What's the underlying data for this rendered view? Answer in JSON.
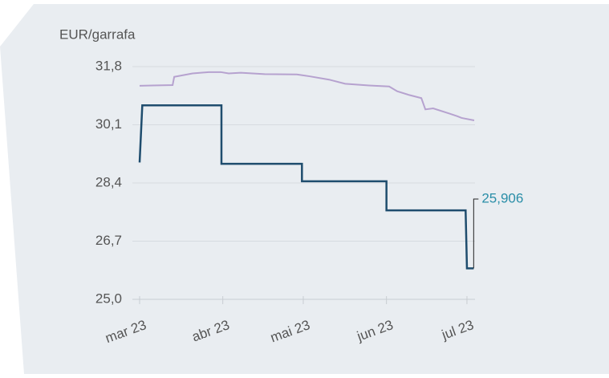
{
  "chart_data": {
    "type": "line",
    "ylabel": "EUR/garrafa",
    "ylim": [
      25.0,
      31.8
    ],
    "yticks": [
      {
        "value": 25.0,
        "label": "25,0"
      },
      {
        "value": 26.7,
        "label": "26,7"
      },
      {
        "value": 28.4,
        "label": "28,4"
      },
      {
        "value": 30.1,
        "label": "30,1"
      },
      {
        "value": 31.8,
        "label": "31,8"
      }
    ],
    "xlim": [
      0,
      125
    ],
    "xticks": [
      {
        "value": 0,
        "label": "mar 23"
      },
      {
        "value": 31,
        "label": "abr 23"
      },
      {
        "value": 61,
        "label": "mai 23"
      },
      {
        "value": 92,
        "label": "jun 23"
      },
      {
        "value": 122,
        "label": "jul 23"
      }
    ],
    "grid": true,
    "series": [
      {
        "color": "#1f4d6e",
        "x": [
          0,
          1,
          30.5,
          30.5,
          60.5,
          60.5,
          92,
          92,
          121.5,
          122,
          124.5
        ],
        "values": [
          29.0,
          30.67,
          30.67,
          28.96,
          28.96,
          28.45,
          28.45,
          27.6,
          27.6,
          25.906,
          25.906
        ]
      },
      {
        "color": "#b6a2cf",
        "x": [
          0,
          4.8,
          12.3,
          12.9,
          19.7,
          25.7,
          30.2,
          33.2,
          37.7,
          46.6,
          58.6,
          63.1,
          70.6,
          76.6,
          85.5,
          93,
          96,
          100.5,
          105,
          106.5,
          109.4,
          115.4,
          118.4,
          120,
          124.7
        ],
        "values": [
          31.24,
          31.25,
          31.26,
          31.5,
          31.6,
          31.64,
          31.64,
          31.6,
          31.62,
          31.58,
          31.57,
          31.52,
          31.42,
          31.3,
          31.25,
          31.22,
          31.08,
          30.97,
          30.88,
          30.55,
          30.58,
          30.43,
          30.35,
          30.3,
          30.23
        ]
      }
    ],
    "annotation": "25,906"
  }
}
